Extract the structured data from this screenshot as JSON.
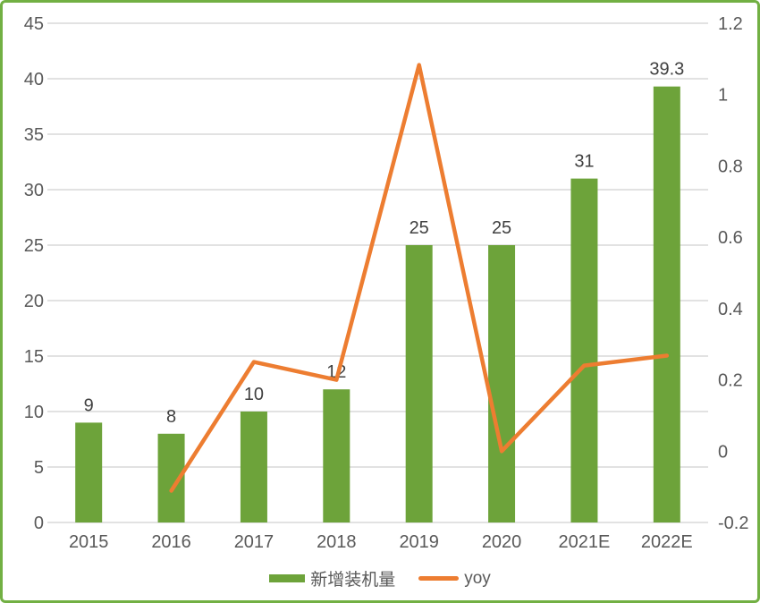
{
  "frame": {
    "border_color": "#72B043",
    "background": "#FFFFFF"
  },
  "chart_data": {
    "type": "bar+line combo",
    "title": "",
    "xlabel": "",
    "ylabel": "",
    "categories": [
      "2015",
      "2016",
      "2017",
      "2018",
      "2019",
      "2020",
      "2021E",
      "2022E"
    ],
    "series": [
      {
        "name": "新增装机量",
        "type": "bar",
        "axis": "left",
        "color": "#6DA33A",
        "values": [
          9,
          8,
          10,
          12,
          25,
          25,
          31,
          39.3
        ],
        "data_labels": [
          "9",
          "8",
          "10",
          "12",
          "25",
          "25",
          "31",
          "39.3"
        ]
      },
      {
        "name": "yoy",
        "type": "line",
        "axis": "right",
        "color": "#ED7D31",
        "values": [
          null,
          -0.111,
          0.25,
          0.2,
          1.083,
          0,
          0.24,
          0.268
        ]
      }
    ],
    "left_axis": {
      "min": 0,
      "max": 45,
      "tick_labels_top_to_bottom": [
        "45",
        "40",
        "35",
        "30",
        "25",
        "20",
        "15",
        "10",
        "5",
        "0"
      ]
    },
    "right_axis": {
      "min": -0.2,
      "max": 1.2,
      "tick_labels_top_to_bottom": [
        "1.2",
        "1",
        "0.8",
        "0.6",
        "0.4",
        "0.2",
        "0",
        "-0.2"
      ]
    },
    "grid": true,
    "gridline_color": "#D9D9D9",
    "legend_position": "bottom",
    "text_colors": {
      "axis": "#595959",
      "data_label": "#404040"
    }
  },
  "legend": {
    "items": [
      {
        "label": "新增装机量",
        "swatch": "bar",
        "color": "#6DA33A"
      },
      {
        "label": "yoy",
        "swatch": "line",
        "color": "#ED7D31"
      }
    ]
  }
}
